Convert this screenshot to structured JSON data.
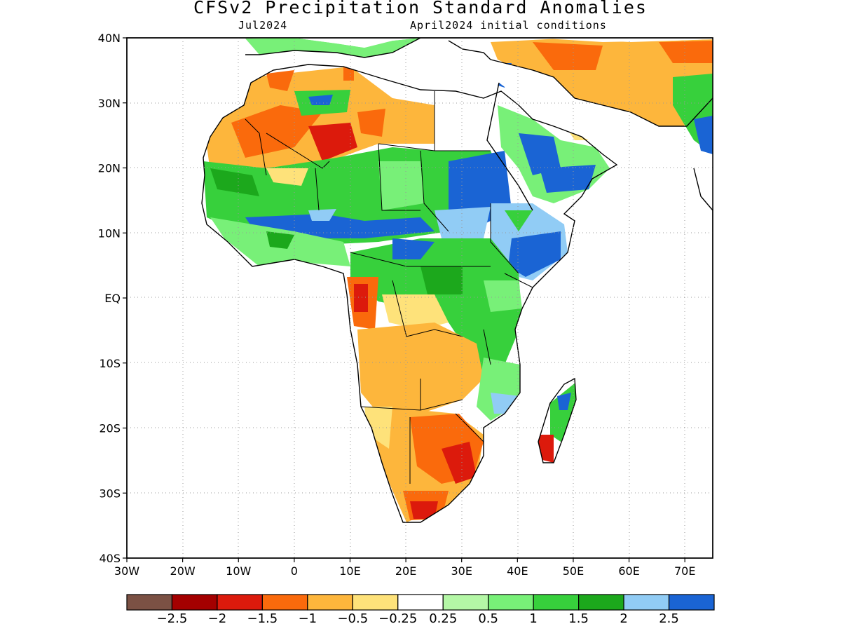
{
  "header": {
    "title": "CFSv2 Precipitation Standard Anomalies",
    "valid_month": "Jul2024",
    "initial_conditions": "April2024 initial conditions"
  },
  "map": {
    "lon_range": [
      -30,
      75
    ],
    "lat_range": [
      -40,
      40
    ],
    "lat_ticks": [
      {
        "value": 40,
        "label": "40N"
      },
      {
        "value": 30,
        "label": "30N"
      },
      {
        "value": 20,
        "label": "20N"
      },
      {
        "value": 10,
        "label": "10N"
      },
      {
        "value": 0,
        "label": "EQ"
      },
      {
        "value": -10,
        "label": "10S"
      },
      {
        "value": -20,
        "label": "20S"
      },
      {
        "value": -30,
        "label": "30S"
      },
      {
        "value": -40,
        "label": "40S"
      }
    ],
    "lon_ticks": [
      {
        "value": -30,
        "label": "30W"
      },
      {
        "value": -20,
        "label": "20W"
      },
      {
        "value": -10,
        "label": "10W"
      },
      {
        "value": 0,
        "label": "0"
      },
      {
        "value": 10,
        "label": "10E"
      },
      {
        "value": 20,
        "label": "20E"
      },
      {
        "value": 30,
        "label": "30E"
      },
      {
        "value": 40,
        "label": "40E"
      },
      {
        "value": 50,
        "label": "50E"
      },
      {
        "value": 60,
        "label": "60E"
      },
      {
        "value": 70,
        "label": "70E"
      }
    ],
    "grid": true
  },
  "colorbar": {
    "colors": [
      "#7b5144",
      "#a40000",
      "#dc1a0c",
      "#fa6a0c",
      "#fdb63c",
      "#fee27a",
      "#ffffff",
      "#b4f7a6",
      "#78f078",
      "#37d03c",
      "#1ca81c",
      "#91ccf5",
      "#1a64d4"
    ],
    "labels": [
      "−2.5",
      "−2",
      "−1.5",
      "−1",
      "−0.5",
      "−0.25",
      "0.25",
      "0.5",
      "1",
      "1.5",
      "2",
      "2.5"
    ]
  }
}
